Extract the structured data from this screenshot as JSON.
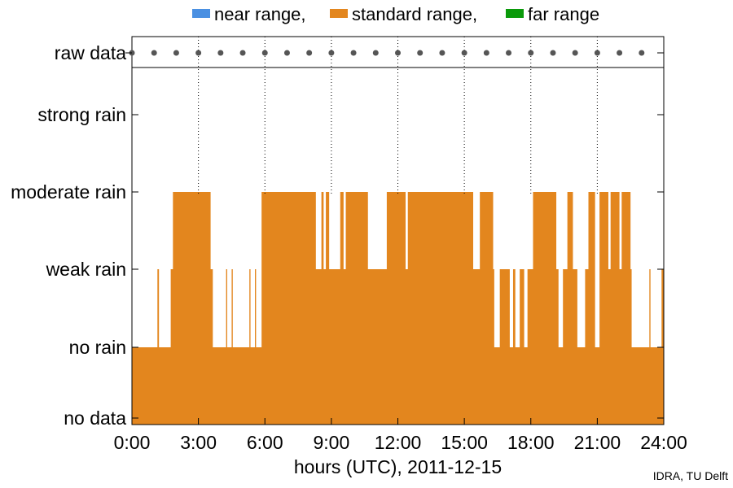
{
  "chart_data": {
    "type": "area",
    "legend": [
      {
        "label": "near range,",
        "color": "#4a90e2"
      },
      {
        "label": "standard range,",
        "color": "#e3861e"
      },
      {
        "label": "far range",
        "color": "#0a9a0a"
      }
    ],
    "ycategories": [
      "no data",
      "no rain",
      "weak rain",
      "moderate rain",
      "strong rain"
    ],
    "raw_data_label": "raw data",
    "raw_data_hours": [
      0,
      1,
      2,
      3,
      4,
      5,
      6,
      7,
      8,
      9,
      10,
      11,
      12,
      13,
      14,
      15,
      16,
      17,
      18,
      19,
      20,
      21,
      22,
      23
    ],
    "xticks": [
      "0:00",
      "3:00",
      "6:00",
      "9:00",
      "12:00",
      "15:00",
      "18:00",
      "21:00",
      "24:00"
    ],
    "xlim": [
      0,
      24
    ],
    "xlabel": "hours (UTC), 2011-12-15",
    "series": [
      {
        "name": "standard range",
        "color": "#e3861e",
        "steps": [
          [
            0.0,
            1
          ],
          [
            1.15,
            2
          ],
          [
            1.22,
            1
          ],
          [
            1.75,
            2
          ],
          [
            1.85,
            3
          ],
          [
            3.55,
            2
          ],
          [
            3.65,
            1
          ],
          [
            4.25,
            2
          ],
          [
            4.3,
            1
          ],
          [
            4.5,
            2
          ],
          [
            4.55,
            1
          ],
          [
            5.3,
            2
          ],
          [
            5.35,
            1
          ],
          [
            5.55,
            2
          ],
          [
            5.6,
            1
          ],
          [
            5.85,
            3
          ],
          [
            8.3,
            2
          ],
          [
            8.55,
            3
          ],
          [
            8.65,
            2
          ],
          [
            8.75,
            3
          ],
          [
            8.9,
            2
          ],
          [
            9.4,
            3
          ],
          [
            9.55,
            2
          ],
          [
            9.65,
            3
          ],
          [
            10.65,
            2
          ],
          [
            11.5,
            3
          ],
          [
            12.35,
            2
          ],
          [
            12.45,
            3
          ],
          [
            15.4,
            2
          ],
          [
            15.7,
            3
          ],
          [
            16.3,
            2
          ],
          [
            16.35,
            1
          ],
          [
            16.6,
            2
          ],
          [
            17.05,
            1
          ],
          [
            17.2,
            2
          ],
          [
            17.3,
            1
          ],
          [
            17.5,
            2
          ],
          [
            17.7,
            1
          ],
          [
            17.85,
            2
          ],
          [
            18.1,
            3
          ],
          [
            19.15,
            2
          ],
          [
            19.25,
            1
          ],
          [
            19.45,
            2
          ],
          [
            19.65,
            3
          ],
          [
            19.9,
            2
          ],
          [
            20.1,
            1
          ],
          [
            20.45,
            2
          ],
          [
            20.6,
            3
          ],
          [
            20.9,
            1
          ],
          [
            21.1,
            3
          ],
          [
            21.5,
            2
          ],
          [
            21.6,
            3
          ],
          [
            22.0,
            2
          ],
          [
            22.1,
            3
          ],
          [
            22.5,
            2
          ],
          [
            22.55,
            1
          ],
          [
            23.35,
            2
          ],
          [
            23.4,
            1
          ],
          [
            23.9,
            2
          ],
          [
            24.0,
            2
          ]
        ]
      }
    ]
  },
  "footer": {
    "credit": "IDRA, TU Delft"
  }
}
